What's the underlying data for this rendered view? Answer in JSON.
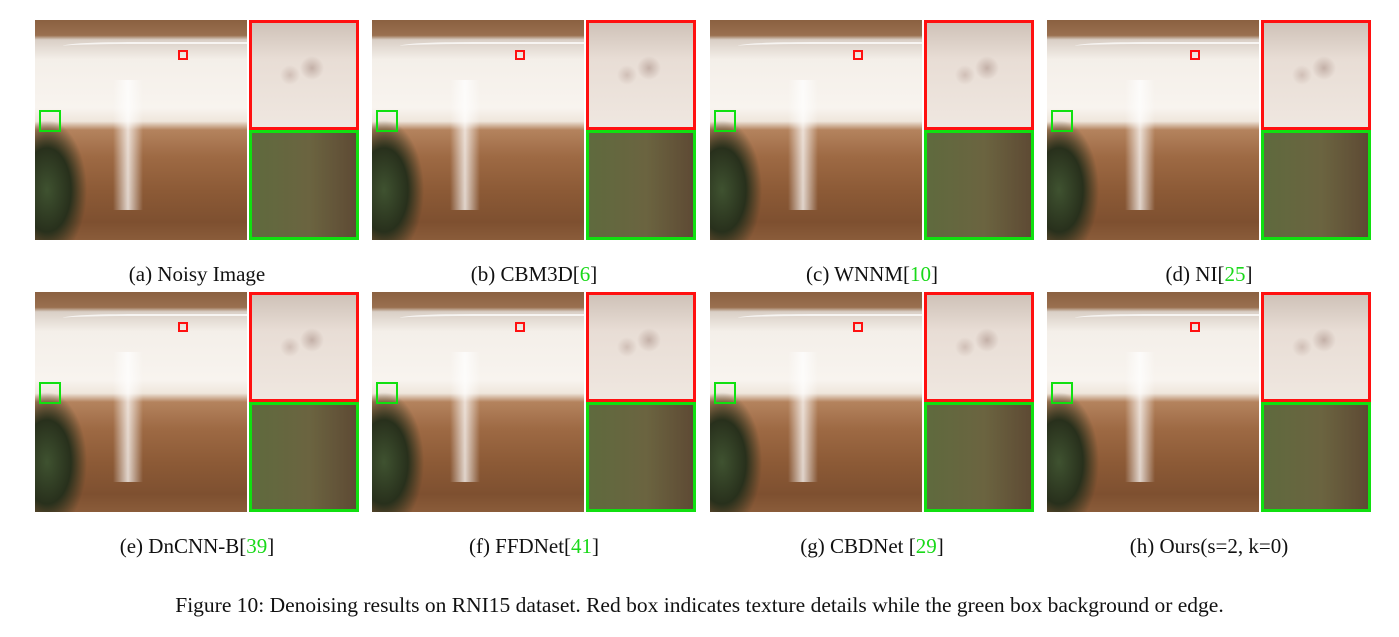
{
  "panels": [
    {
      "label": "(a) Noisy Image",
      "cite": ""
    },
    {
      "label": "(b) CBM3D[",
      "cite": "6",
      "close": "]"
    },
    {
      "label": "(c) WNNM[",
      "cite": "10",
      "close": "]"
    },
    {
      "label": "(d) NI[",
      "cite": "25",
      "close": "]"
    },
    {
      "label": "(e) DnCNN-B[",
      "cite": "39",
      "close": "]"
    },
    {
      "label": "(f) FFDNet[",
      "cite": "41",
      "close": "]"
    },
    {
      "label": "(g) CBDNet [",
      "cite": "29",
      "close": "]"
    },
    {
      "label": "(h) Ours(s=2, k=0)",
      "cite": ""
    }
  ],
  "figure_caption": "Figure 10: Denoising results on RNI15 dataset. Red box indicates texture details while the green box background or edge.",
  "colors": {
    "red_box": "#ff1010",
    "green_box": "#10e010",
    "citation": "#19d919"
  }
}
